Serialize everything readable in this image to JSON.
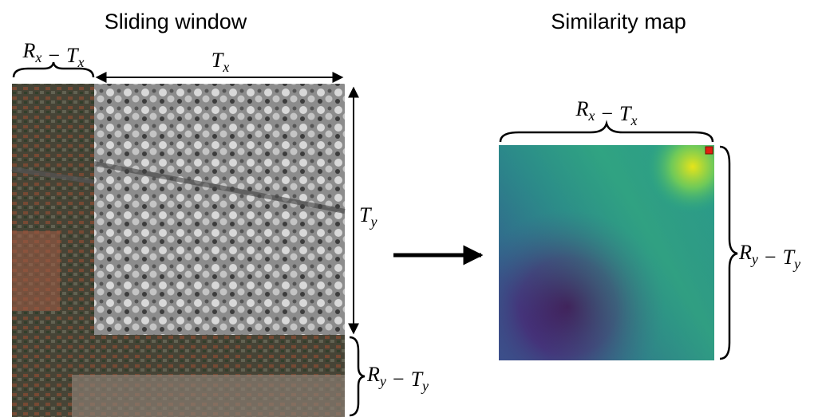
{
  "titles": {
    "left": "Sliding window",
    "right": "Similarity map"
  },
  "labels": {
    "left_top_offset": {
      "terms": [
        {
          "base": "R",
          "sub": "x"
        },
        {
          "base": "T",
          "sub": "x"
        }
      ],
      "operator": "−"
    },
    "left_top_window": {
      "terms": [
        {
          "base": "T",
          "sub": "x"
        }
      ]
    },
    "left_side_window": {
      "terms": [
        {
          "base": "T",
          "sub": "y"
        }
      ]
    },
    "left_side_offset": {
      "terms": [
        {
          "base": "R",
          "sub": "y"
        },
        {
          "base": "T",
          "sub": "y"
        }
      ],
      "operator": "−"
    },
    "map_top": {
      "terms": [
        {
          "base": "R",
          "sub": "x"
        },
        {
          "base": "T",
          "sub": "x"
        }
      ],
      "operator": "−"
    },
    "map_side": {
      "terms": [
        {
          "base": "R",
          "sub": "y"
        },
        {
          "base": "T",
          "sub": "y"
        }
      ],
      "operator": "−"
    }
  }
}
